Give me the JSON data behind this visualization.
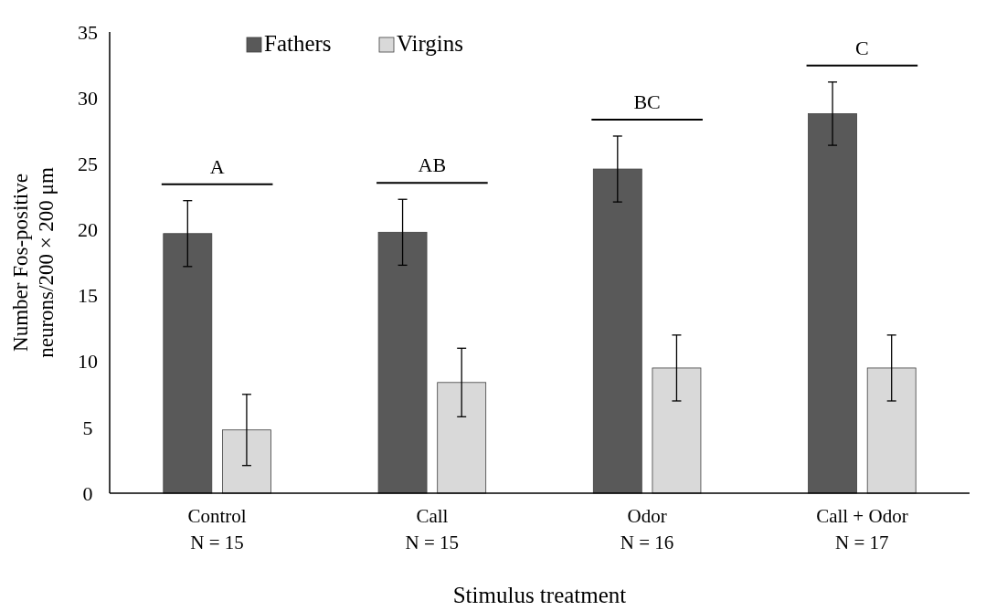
{
  "chart_data": {
    "type": "bar",
    "xlabel": "Stimulus treatment",
    "ylabel": "Number Fos-positive\nneurons/200 × 200 μm",
    "categories": [
      "Control\nN = 15",
      "Call\nN = 15",
      "Odor\nN = 16",
      "Call + Odor\nN = 17"
    ],
    "series": [
      {
        "name": "Fathers",
        "color": "#595959",
        "values": [
          19.7,
          19.8,
          24.6,
          28.8
        ],
        "errors": [
          2.5,
          2.5,
          2.5,
          2.4
        ]
      },
      {
        "name": "Virgins",
        "color": "#d9d9d9",
        "values": [
          4.8,
          8.4,
          9.5,
          9.5
        ],
        "errors": [
          2.7,
          2.6,
          2.5,
          2.5
        ]
      }
    ],
    "ylim": [
      0,
      35
    ],
    "yticks": [
      0,
      5,
      10,
      15,
      20,
      25,
      30,
      35
    ],
    "grid": false,
    "legend": "top left",
    "annotations": [
      "A",
      "AB",
      "BC",
      "C"
    ]
  }
}
